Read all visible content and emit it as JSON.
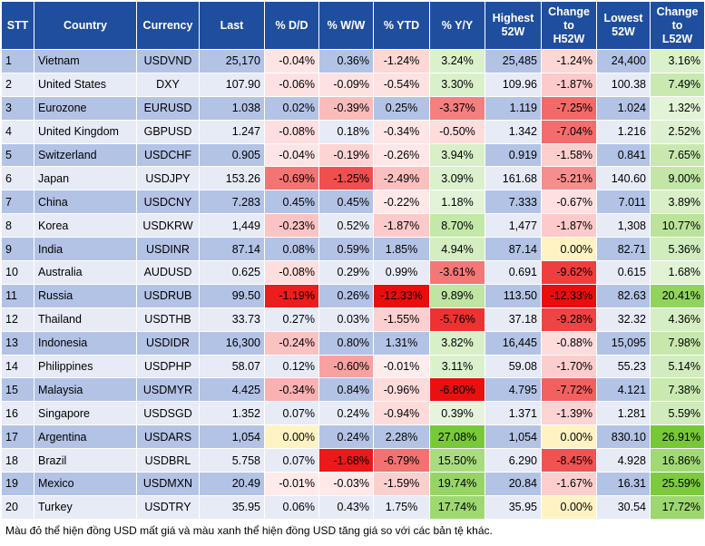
{
  "headers": {
    "stt": "STT",
    "country": "Country",
    "currency": "Currency",
    "last": "Last",
    "dd": "% D/D",
    "ww": "% W/W",
    "ytd": "% YTD",
    "yy": "% Y/Y",
    "highest_l1": "Highest",
    "highest_l2": "52W",
    "ch_h_l1": "Change",
    "ch_h_l2": "to",
    "ch_h_l3": "H52W",
    "lowest_l1": "Lowest",
    "lowest_l2": "52W",
    "ch_l_l1": "Change",
    "ch_l_l2": "to",
    "ch_l_l3": "L52W"
  },
  "rows": [
    {
      "stt": "1",
      "country": "Vietnam",
      "currency": "USDVND",
      "last": "25,170",
      "dd": "-0.04%",
      "ww": "0.36%",
      "ytd": "-1.24%",
      "yy": "3.24%",
      "high": "25,485",
      "ch_high": "-1.24%",
      "low": "24,400",
      "ch_low": "3.16%"
    },
    {
      "stt": "2",
      "country": "United States",
      "currency": "DXY",
      "last": "107.90",
      "dd": "-0.06%",
      "ww": "-0.09%",
      "ytd": "-0.54%",
      "yy": "3.30%",
      "high": "109.96",
      "ch_high": "-1.87%",
      "low": "100.38",
      "ch_low": "7.49%"
    },
    {
      "stt": "3",
      "country": "Eurozone",
      "currency": "EURUSD",
      "last": "1.038",
      "dd": "0.02%",
      "ww": "-0.39%",
      "ytd": "0.25%",
      "yy": "-3.37%",
      "high": "1.119",
      "ch_high": "-7.25%",
      "low": "1.024",
      "ch_low": "1.32%"
    },
    {
      "stt": "4",
      "country": "United Kingdom",
      "currency": "GBPUSD",
      "last": "1.247",
      "dd": "-0.08%",
      "ww": "0.18%",
      "ytd": "-0.34%",
      "yy": "-0.50%",
      "high": "1.342",
      "ch_high": "-7.04%",
      "low": "1.216",
      "ch_low": "2.52%"
    },
    {
      "stt": "5",
      "country": "Switzerland",
      "currency": "USDCHF",
      "last": "0.905",
      "dd": "-0.04%",
      "ww": "-0.19%",
      "ytd": "-0.26%",
      "yy": "3.94%",
      "high": "0.919",
      "ch_high": "-1.58%",
      "low": "0.841",
      "ch_low": "7.65%"
    },
    {
      "stt": "6",
      "country": "Japan",
      "currency": "USDJPY",
      "last": "153.26",
      "dd": "-0.69%",
      "ww": "-1.25%",
      "ytd": "-2.49%",
      "yy": "3.09%",
      "high": "161.68",
      "ch_high": "-5.21%",
      "low": "140.60",
      "ch_low": "9.00%"
    },
    {
      "stt": "7",
      "country": "China",
      "currency": "USDCNY",
      "last": "7.283",
      "dd": "0.45%",
      "ww": "0.45%",
      "ytd": "-0.22%",
      "yy": "1.18%",
      "high": "7.333",
      "ch_high": "-0.67%",
      "low": "7.011",
      "ch_low": "3.89%"
    },
    {
      "stt": "8",
      "country": "Korea",
      "currency": "USDKRW",
      "last": "1,449",
      "dd": "-0.23%",
      "ww": "0.52%",
      "ytd": "-1.87%",
      "yy": "8.70%",
      "high": "1,477",
      "ch_high": "-1.87%",
      "low": "1,308",
      "ch_low": "10.77%"
    },
    {
      "stt": "9",
      "country": "India",
      "currency": "USDINR",
      "last": "87.14",
      "dd": "0.08%",
      "ww": "0.59%",
      "ytd": "1.85%",
      "yy": "4.94%",
      "high": "87.14",
      "ch_high": "0.00%",
      "low": "82.71",
      "ch_low": "5.36%"
    },
    {
      "stt": "10",
      "country": "Australia",
      "currency": "AUDUSD",
      "last": "0.625",
      "dd": "-0.08%",
      "ww": "0.29%",
      "ytd": "0.99%",
      "yy": "-3.61%",
      "high": "0.691",
      "ch_high": "-9.62%",
      "low": "0.615",
      "ch_low": "1.68%"
    },
    {
      "stt": "11",
      "country": "Russia",
      "currency": "USDRUB",
      "last": "99.50",
      "dd": "-1.19%",
      "ww": "0.26%",
      "ytd": "-12.33%",
      "yy": "9.89%",
      "high": "113.50",
      "ch_high": "-12.33%",
      "low": "82.63",
      "ch_low": "20.41%"
    },
    {
      "stt": "12",
      "country": "Thailand",
      "currency": "USDTHB",
      "last": "33.73",
      "dd": "0.27%",
      "ww": "0.03%",
      "ytd": "-1.55%",
      "yy": "-5.76%",
      "high": "37.18",
      "ch_high": "-9.28%",
      "low": "32.32",
      "ch_low": "4.36%"
    },
    {
      "stt": "13",
      "country": "Indonesia",
      "currency": "USDIDR",
      "last": "16,300",
      "dd": "-0.24%",
      "ww": "0.80%",
      "ytd": "1.31%",
      "yy": "3.82%",
      "high": "16,445",
      "ch_high": "-0.88%",
      "low": "15,095",
      "ch_low": "7.98%"
    },
    {
      "stt": "14",
      "country": "Philippines",
      "currency": "USDPHP",
      "last": "58.07",
      "dd": "0.12%",
      "ww": "-0.60%",
      "ytd": "-0.01%",
      "yy": "3.11%",
      "high": "59.08",
      "ch_high": "-1.70%",
      "low": "55.23",
      "ch_low": "5.14%"
    },
    {
      "stt": "15",
      "country": "Malaysia",
      "currency": "USDMYR",
      "last": "4.425",
      "dd": "-0.34%",
      "ww": "0.84%",
      "ytd": "-0.96%",
      "yy": "-6.80%",
      "high": "4.795",
      "ch_high": "-7.72%",
      "low": "4.121",
      "ch_low": "7.38%"
    },
    {
      "stt": "16",
      "country": "Singapore",
      "currency": "USDSGD",
      "last": "1.352",
      "dd": "0.07%",
      "ww": "0.24%",
      "ytd": "-0.94%",
      "yy": "0.39%",
      "high": "1.371",
      "ch_high": "-1.39%",
      "low": "1.281",
      "ch_low": "5.59%"
    },
    {
      "stt": "17",
      "country": "Argentina",
      "currency": "USDARS",
      "last": "1,054",
      "dd": "0.00%",
      "ww": "0.24%",
      "ytd": "2.28%",
      "yy": "27.08%",
      "high": "1,054",
      "ch_high": "0.00%",
      "low": "830.10",
      "ch_low": "26.91%"
    },
    {
      "stt": "18",
      "country": "Brazil",
      "currency": "USDBRL",
      "last": "5.758",
      "dd": "0.07%",
      "ww": "-1.68%",
      "ytd": "-6.79%",
      "yy": "15.50%",
      "high": "6.290",
      "ch_high": "-8.45%",
      "low": "4.928",
      "ch_low": "16.86%"
    },
    {
      "stt": "19",
      "country": "Mexico",
      "currency": "USDMXN",
      "last": "20.49",
      "dd": "-0.01%",
      "ww": "-0.03%",
      "ytd": "-1.59%",
      "yy": "19.74%",
      "high": "20.84",
      "ch_high": "-1.67%",
      "low": "16.31",
      "ch_low": "25.59%"
    },
    {
      "stt": "20",
      "country": "Turkey",
      "currency": "USDTRY",
      "last": "35.95",
      "dd": "0.06%",
      "ww": "0.43%",
      "ytd": "1.75%",
      "yy": "17.74%",
      "high": "35.95",
      "ch_high": "0.00%",
      "low": "30.54",
      "ch_low": "17.72%"
    }
  ],
  "footnote": "Màu đỏ thể hiện đồng USD mất giá và màu xanh thể hiện đồng USD tăng giá so với các bản tệ khác."
}
